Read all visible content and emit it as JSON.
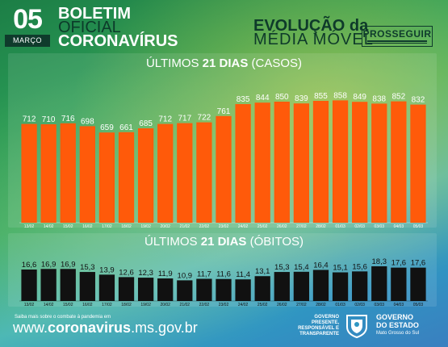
{
  "header": {
    "day": "05",
    "month": "MARÇO",
    "boletim_line1": "BOLETIM",
    "boletim_line2": "OFICIAL",
    "boletim_line3": "CORONAVÍRUS",
    "evolution_line1": "EVOLUÇÃO da",
    "evolution_line2": "MÉDIA MÓVEL",
    "partner_logo": "PROSSEGUIR"
  },
  "chart_data": [
    {
      "type": "bar",
      "title_prefix": "ÚLTIMOS ",
      "title_bold": "21 DIAS",
      "title_suffix": " (CASOS)",
      "categories": [
        "13/02",
        "14/02",
        "15/02",
        "16/02",
        "17/02",
        "18/02",
        "19/02",
        "20/02",
        "21/02",
        "22/02",
        "23/02",
        "24/02",
        "25/02",
        "26/02",
        "27/02",
        "28/02",
        "01/03",
        "02/03",
        "03/03",
        "04/03",
        "05/03"
      ],
      "values": [
        712,
        710,
        716,
        698,
        659,
        661,
        685,
        712,
        717,
        722,
        761,
        835,
        844,
        850,
        839,
        855,
        858,
        849,
        838,
        852,
        832
      ],
      "value_labels": [
        "712",
        "710",
        "716",
        "698",
        "659",
        "661",
        "685",
        "712",
        "717",
        "722",
        "761",
        "835",
        "844",
        "850",
        "839",
        "855",
        "858",
        "849",
        "838",
        "852",
        "832"
      ],
      "ylim": [
        100,
        1000
      ],
      "bar_color": "#ff5a0a"
    },
    {
      "type": "bar",
      "title_prefix": "ÚLTIMOS ",
      "title_bold": "21 DIAS",
      "title_suffix": " (ÓBITOS)",
      "categories": [
        "13/02",
        "14/02",
        "15/02",
        "16/02",
        "17/02",
        "18/02",
        "19/02",
        "20/02",
        "21/02",
        "22/02",
        "23/02",
        "24/02",
        "25/02",
        "26/02",
        "27/02",
        "28/02",
        "01/03",
        "02/03",
        "03/03",
        "04/03",
        "05/03"
      ],
      "values": [
        16.6,
        16.9,
        16.9,
        15.3,
        13.9,
        12.6,
        12.3,
        11.9,
        10.9,
        11.7,
        11.6,
        11.4,
        13.1,
        15.3,
        15.4,
        16.4,
        15.1,
        15.6,
        18.3,
        17.6,
        17.6
      ],
      "value_labels": [
        "16,6",
        "16,9",
        "16,9",
        "15,3",
        "13,9",
        "12,6",
        "12,3",
        "11,9",
        "10,9",
        "11,7",
        "11,6",
        "11,4",
        "13,1",
        "15,3",
        "15,4",
        "16,4",
        "15,1",
        "15,6",
        "18,3",
        "17,6",
        "17,6"
      ],
      "ylim": [
        0,
        20
      ],
      "bar_color": "#111111"
    }
  ],
  "footer": {
    "small_text": "Saiba mais sobre o combate à pandemia em",
    "url_prefix": "www.",
    "url_bold": "coronavirus",
    "url_suffix": ".ms.gov.br",
    "tag_line1": "GOVERNO",
    "tag_line2": "PRESENTE,",
    "tag_line3": "RESPONSÁVEL E",
    "tag_line4": "TRANSPARENTE",
    "gov_line1": "GOVERNO",
    "gov_line2": "DO ESTADO",
    "gov_sub": "Mato Grosso do Sul"
  }
}
